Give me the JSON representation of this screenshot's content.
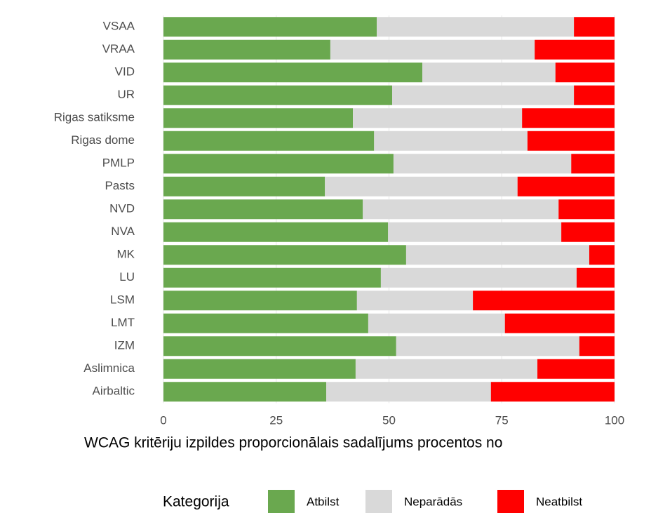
{
  "chart_data": {
    "type": "stacked_barh",
    "x_label": "WCAG kritēriju izpildes proporcionālais sadalījums procentos no",
    "legend_title": "Kategorija",
    "legend_position": "bottom",
    "categories": [
      "VSAA",
      "VRAA",
      "VID",
      "UR",
      "Rigas satiksme",
      "Rigas dome",
      "PMLP",
      "Pasts",
      "NVD",
      "NVA",
      "MK",
      "LU",
      "LSM",
      "LMT",
      "IZM",
      "Aslimnica",
      "Airbaltic"
    ],
    "series": [
      {
        "name": "Atbilst",
        "color": "#6aa84f",
        "values": [
          47.3,
          37.0,
          57.4,
          50.7,
          42.0,
          46.7,
          51.0,
          35.8,
          44.2,
          49.8,
          53.8,
          48.2,
          42.9,
          45.4,
          51.6,
          42.6,
          36.1
        ]
      },
      {
        "name": "Neparādās",
        "color": "#d9d9d9",
        "values": [
          43.7,
          45.3,
          29.5,
          40.3,
          37.5,
          34.0,
          39.4,
          42.7,
          43.4,
          38.4,
          40.6,
          43.4,
          25.7,
          30.3,
          40.6,
          40.3,
          36.5
        ]
      },
      {
        "name": "Neatbilst",
        "color": "#ff0000",
        "values": [
          9.0,
          17.7,
          13.1,
          9.0,
          20.5,
          19.3,
          9.6,
          21.5,
          12.4,
          11.8,
          5.6,
          8.4,
          31.4,
          24.3,
          7.8,
          17.1,
          27.4
        ]
      }
    ],
    "xlim": [
      0,
      100
    ],
    "xticks": [
      0,
      25,
      50,
      75,
      100
    ],
    "grid": true
  }
}
